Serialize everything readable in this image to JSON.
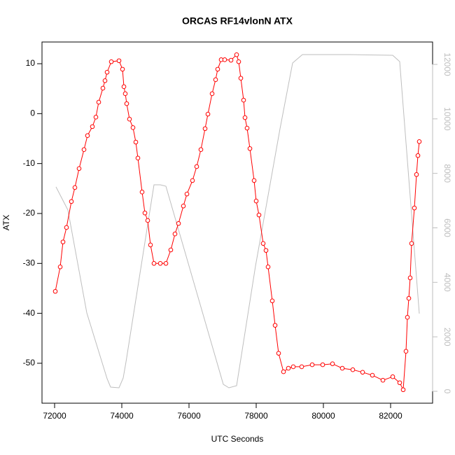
{
  "chart_data": {
    "type": "line",
    "title": "ORCAS RF14vlonN ATX",
    "xlabel": "UTC Seconds",
    "ylabel": "ATX",
    "xlim": [
      71625,
      83250
    ],
    "ylim": [
      -58.0,
      14.35
    ],
    "y2lim": [
      -437,
      12822
    ],
    "xticks": [
      72000,
      74000,
      76000,
      78000,
      80000,
      82000
    ],
    "yticks": [
      -50,
      -40,
      -30,
      -20,
      -10,
      0,
      10
    ],
    "y2ticks": [
      0,
      2000,
      4000,
      6000,
      8000,
      10000,
      12000
    ],
    "series": [
      {
        "color": "#bebebe",
        "axis": "y2",
        "x": [
          72042,
          72396,
          72958,
          73563,
          73667,
          73917,
          74042,
          74125,
          74958,
          75146,
          75313,
          77021,
          77188,
          77417,
          77979,
          78708,
          79083,
          79375,
          80792,
          82063,
          82271,
          82854
        ],
        "values": [
          7503,
          6655,
          2878,
          462,
          154,
          128,
          488,
          1079,
          7580,
          7580,
          7528,
          257,
          128,
          206,
          4599,
          9635,
          12050,
          12359,
          12359,
          12333,
          12102,
          2852
        ]
      },
      {
        "color": "#ff0000",
        "marker": "circle",
        "x": [
          72021,
          72167,
          72250,
          72354,
          72500,
          72604,
          72729,
          72875,
          72979,
          73125,
          73229,
          73313,
          73438,
          73500,
          73563,
          73688,
          73917,
          74021,
          74063,
          74104,
          74146,
          74229,
          74333,
          74417,
          74479,
          74604,
          74688,
          74771,
          74854,
          74958,
          75146,
          75313,
          75458,
          75583,
          75688,
          75833,
          75938,
          76104,
          76229,
          76354,
          76479,
          76563,
          76688,
          76792,
          76854,
          76958,
          77063,
          77250,
          77417,
          77479,
          77542,
          77625,
          77667,
          77729,
          77813,
          77938,
          78000,
          78083,
          78208,
          78292,
          78354,
          78479,
          78563,
          78667,
          78813,
          78958,
          79104,
          79354,
          79667,
          79979,
          80271,
          80563,
          80875,
          81167,
          81458,
          81771,
          82063,
          82271,
          82375,
          82458,
          82500,
          82542,
          82583,
          82625,
          82708,
          82771,
          82813,
          82854
        ],
        "values": [
          -35.6,
          -30.7,
          -25.7,
          -22.8,
          -17.6,
          -14.8,
          -11.0,
          -7.2,
          -4.4,
          -2.6,
          -0.7,
          2.3,
          5.1,
          6.6,
          8.3,
          10.4,
          10.6,
          8.9,
          5.4,
          4.0,
          2.0,
          -1.1,
          -2.8,
          -5.7,
          -8.9,
          -15.7,
          -19.9,
          -21.4,
          -26.3,
          -30.0,
          -30.0,
          -30.0,
          -27.3,
          -24.1,
          -22.0,
          -18.5,
          -16.1,
          -13.4,
          -10.6,
          -7.2,
          -3.0,
          -0.1,
          4.0,
          6.8,
          8.9,
          10.8,
          10.8,
          10.7,
          11.8,
          10.4,
          7.1,
          2.7,
          -0.8,
          -2.9,
          -7.0,
          -13.4,
          -17.5,
          -20.3,
          -26.0,
          -27.4,
          -30.7,
          -37.5,
          -42.4,
          -48.0,
          -51.7,
          -51.0,
          -50.7,
          -50.7,
          -50.3,
          -50.3,
          -50.1,
          -51.0,
          -51.3,
          -51.8,
          -52.4,
          -53.4,
          -52.7,
          -53.9,
          -55.3,
          -47.6,
          -40.8,
          -37.0,
          -32.9,
          -26.0,
          -18.9,
          -12.2,
          -8.4,
          -5.6
        ]
      }
    ]
  }
}
